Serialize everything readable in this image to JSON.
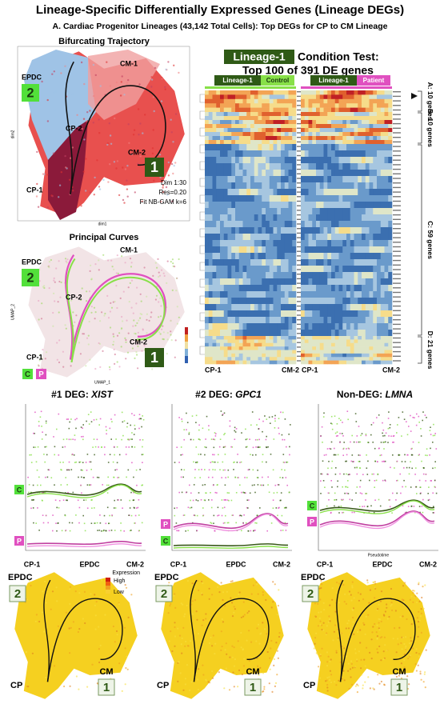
{
  "title": "Lineage-Specific Differentially Expressed Genes (Lineage DEGs)",
  "subtitle": "A. Cardiac Progenitor Lineages (43,142 Total Cells): Top DEGs for CP to CM Lineage",
  "trajectory_panel": {
    "title": "Bifurcating Trajectory",
    "epdc": "EPDC",
    "lineage2": "2",
    "cm1": "CM-1",
    "cp2": "CP-2",
    "cm2": "CM-2",
    "cp1": "CP-1",
    "lineage1": "1",
    "params": [
      "Dim 1:30",
      "Res=0.20",
      "Fit NB-GAM k=6"
    ],
    "x_axis": "dim1",
    "y_axis": "dim2"
  },
  "curves_panel": {
    "title": "Principal Curves",
    "epdc": "EPDC",
    "lineage2": "2",
    "cm1": "CM-1",
    "cp2": "CP-2",
    "cm2": "CM-2",
    "cp1": "CP-1",
    "lineage1": "1",
    "control": "C",
    "patient": "P",
    "x_axis": "UMAP_1",
    "y_axis": "UMAP_2"
  },
  "heatmap": {
    "lineage_badge": "Lineage-1",
    "title": "Condition Test:",
    "subtitle": "Top 100 of 391 DE genes",
    "columns": [
      {
        "lineage": "Lineage-1",
        "condition": "Control"
      },
      {
        "lineage": "Lineage-1",
        "condition": "Patient"
      }
    ],
    "row_groups": [
      "A: 10 genes",
      "B: 10 genes",
      "C: 59 genes",
      "D: 21 genes"
    ],
    "x_labels": [
      "CP-1",
      "CM-2",
      "CP-1",
      "CM-2"
    ]
  },
  "gene_panels": [
    {
      "prefix": "#1 DEG: ",
      "gene": "XIST",
      "control": "C",
      "patient": "P",
      "x_labels": [
        "CP-1",
        "EPDC",
        "CM-2"
      ]
    },
    {
      "prefix": "#2 DEG: ",
      "gene": "GPC1",
      "control": "C",
      "patient": "P",
      "x_labels": [
        "CP-1",
        "EPDC",
        "CM-2"
      ]
    },
    {
      "prefix": "Non-DEG: ",
      "gene": "LMNA",
      "control": "C",
      "patient": "P",
      "x_labels": [
        "CP-1",
        "EPDC",
        "CM-2"
      ],
      "x_axis": "Pseudotime"
    }
  ],
  "expression_maps": [
    {
      "epdc": "EPDC",
      "lineage2": "2",
      "cp": "CP",
      "cm": "CM",
      "lineage1": "1",
      "legend_title": "Expression",
      "legend_high": "High",
      "legend_low": "Low"
    },
    {
      "epdc": "EPDC",
      "lineage2": "2",
      "cp": "CP",
      "cm": "CM",
      "lineage1": "1"
    },
    {
      "epdc": "EPDC",
      "lineage2": "2",
      "cp": "CP",
      "cm": "CM",
      "lineage1": "1"
    }
  ]
}
